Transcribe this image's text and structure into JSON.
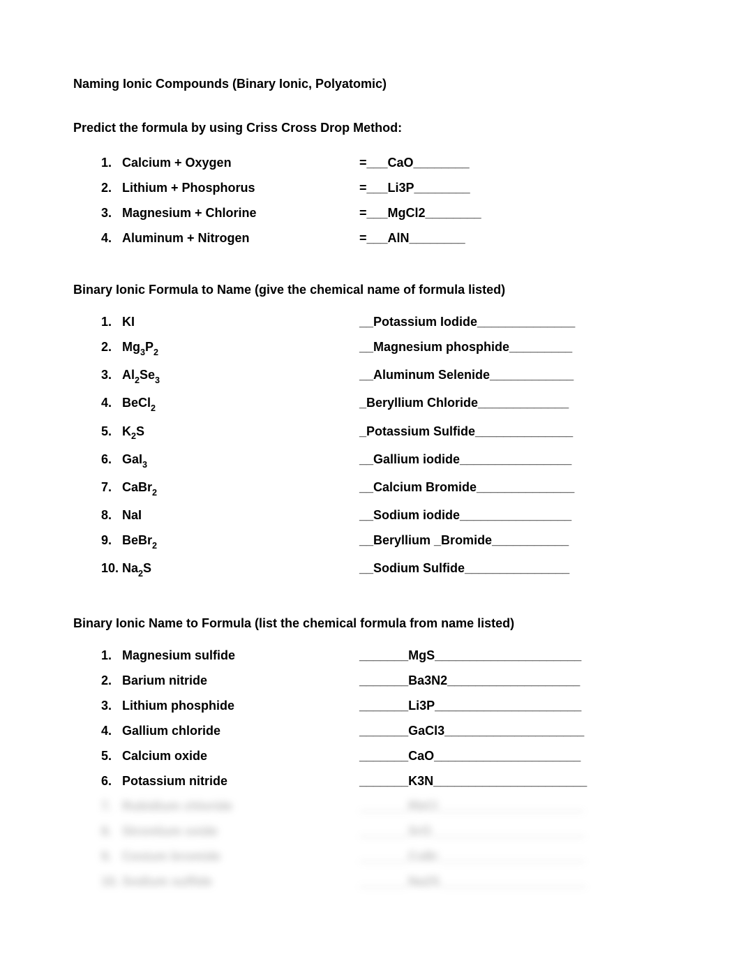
{
  "title": "Naming Ionic Compounds (Binary Ionic, Polyatomic)",
  "section1": {
    "heading": "Predict the formula by using Criss Cross Drop Method:",
    "items": [
      {
        "n": "1.",
        "left": "Calcium + Oxygen",
        "right": "=___CaO________"
      },
      {
        "n": "2.",
        "left": "Lithium + Phosphorus",
        "right": "=___Li3P________"
      },
      {
        "n": "3.",
        "left": "Magnesium + Chlorine",
        "right": "=___MgCl2________"
      },
      {
        "n": "4.",
        "left": "Aluminum + Nitrogen",
        "right": "=___AlN________"
      }
    ]
  },
  "section2": {
    "heading": "Binary Ionic Formula to Name (give the chemical name of formula listed)",
    "items": [
      {
        "n": "1.",
        "left_html": "KI",
        "right": "__Potassium Iodide______________"
      },
      {
        "n": "2.",
        "left_html": "Mg<sub>3</sub>P<sub>2</sub>",
        "right": "__Magnesium phosphide_________"
      },
      {
        "n": "3.",
        "left_html": "Al<sub>2</sub>Se<sub>3</sub>",
        "right": "__Aluminum Selenide____________"
      },
      {
        "n": "4.",
        "left_html": "BeCl<sub>2</sub>",
        "right": "_Beryllium Chloride_____________"
      },
      {
        "n": "5.",
        "left_html": "K<sub>2</sub>S",
        "right": "_Potassium Sulfide______________"
      },
      {
        "n": "6.",
        "left_html": "GaI<sub>3</sub>",
        "right": "__Gallium iodide________________"
      },
      {
        "n": "7.",
        "left_html": "CaBr<sub>2</sub>",
        "right": "__Calcium Bromide______________"
      },
      {
        "n": "8.",
        "left_html": "NaI",
        "right": "__Sodium iodide________________"
      },
      {
        "n": "9.",
        "left_html": "BeBr<sub>2</sub>",
        "right": "__Beryllium _Bromide___________"
      },
      {
        "n": "10.",
        "left_html": "Na<sub>2</sub>S",
        "right": "__Sodium Sulfide_______________"
      }
    ]
  },
  "section3": {
    "heading": "Binary Ionic Name to Formula (list the chemical formula from name listed)",
    "items": [
      {
        "n": "1.",
        "left": "Magnesium sulfide",
        "right": "_______MgS_____________________",
        "blur": false
      },
      {
        "n": "2.",
        "left": "Barium nitride",
        "right": "_______Ba3N2___________________",
        "blur": false
      },
      {
        "n": "3.",
        "left": "Lithium phosphide",
        "right": "_______Li3P_____________________",
        "blur": false
      },
      {
        "n": "4.",
        "left": "Gallium chloride",
        "right": "_______GaCl3____________________",
        "blur": false
      },
      {
        "n": "5.",
        "left": "Calcium oxide",
        "right": "_______CaO_____________________",
        "blur": false
      },
      {
        "n": "6.",
        "left": "Potassium nitride",
        "right": "_______K3N______________________",
        "blur": false
      },
      {
        "n": "7.",
        "left": "Rubidium chloride",
        "right": "_______RbCl_____________________",
        "blur": true
      },
      {
        "n": "8.",
        "left": "Strontium oxide",
        "right": "_______SrO______________________",
        "blur": true
      },
      {
        "n": "9.",
        "left": "Cesium bromide",
        "right": "_______CsBr_____________________",
        "blur": true
      },
      {
        "n": "10.",
        "left": "Sodium sulfide",
        "right": "_______Na2S_____________________",
        "blur": true
      }
    ]
  }
}
